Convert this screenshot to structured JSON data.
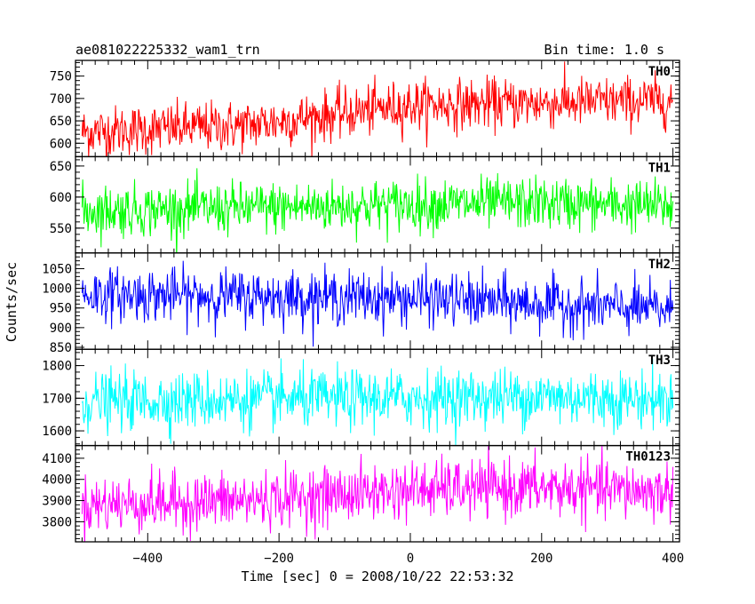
{
  "header": {
    "left": "ae081022225332_wam1_trn",
    "right": "Bin time: 1.0 s"
  },
  "chart_data": {
    "type": "line",
    "xlabel": "Time [sec] 0 = 2008/10/22 22:53:32",
    "ylabel": "Counts/sec",
    "xlim": [
      -510,
      410
    ],
    "x_ticks": [
      -400,
      -200,
      0,
      200,
      400
    ],
    "x_tick_labels": [
      "−400",
      "−200",
      "0",
      "200",
      "400"
    ],
    "x_range": [
      -500,
      400
    ],
    "bin_time": 1.0,
    "panels": [
      {
        "label": "TH0",
        "color": "#ff0000",
        "ylim": [
          570,
          785
        ],
        "y_ticks": [
          600,
          650,
          700,
          750
        ],
        "y_tick_labels": [
          "600",
          "650",
          "700",
          "750"
        ],
        "trend": [
          [
            -500,
            625
          ],
          [
            -250,
            640
          ],
          [
            0,
            685
          ],
          [
            200,
            690
          ],
          [
            400,
            695
          ]
        ],
        "noise": 35
      },
      {
        "label": "TH1",
        "color": "#00ff00",
        "ylim": [
          510,
          665
        ],
        "y_ticks": [
          550,
          600,
          650
        ],
        "y_tick_labels": [
          "550",
          "600",
          "650"
        ],
        "trend": [
          [
            -500,
            578
          ],
          [
            -250,
            582
          ],
          [
            0,
            588
          ],
          [
            200,
            590
          ],
          [
            400,
            585
          ]
        ],
        "noise": 26
      },
      {
        "label": "TH2",
        "color": "#0000ff",
        "ylim": [
          845,
          1090
        ],
        "y_ticks": [
          850,
          900,
          950,
          1000,
          1050
        ],
        "y_tick_labels": [
          "850",
          "900",
          "950",
          "1000",
          "1050"
        ],
        "trend": [
          [
            -500,
            985
          ],
          [
            -250,
            980
          ],
          [
            0,
            975
          ],
          [
            200,
            960
          ],
          [
            400,
            945
          ]
        ],
        "noise": 42
      },
      {
        "label": "TH3",
        "color": "#00ffff",
        "ylim": [
          1555,
          1850
        ],
        "y_ticks": [
          1600,
          1700,
          1800
        ],
        "y_tick_labels": [
          "1600",
          "1700",
          "1800"
        ],
        "trend": [
          [
            -500,
            1690
          ],
          [
            -250,
            1695
          ],
          [
            0,
            1700
          ],
          [
            200,
            1705
          ],
          [
            400,
            1695
          ]
        ],
        "noise": 55
      },
      {
        "label": "TH0123",
        "color": "#ff00ff",
        "ylim": [
          3705,
          4160
        ],
        "y_ticks": [
          3800,
          3900,
          4000,
          4100
        ],
        "y_tick_labels": [
          "3800",
          "3900",
          "4000",
          "4100"
        ],
        "trend": [
          [
            -500,
            3880
          ],
          [
            -250,
            3900
          ],
          [
            0,
            3950
          ],
          [
            200,
            3960
          ],
          [
            400,
            3940
          ]
        ],
        "noise": 85
      }
    ]
  }
}
